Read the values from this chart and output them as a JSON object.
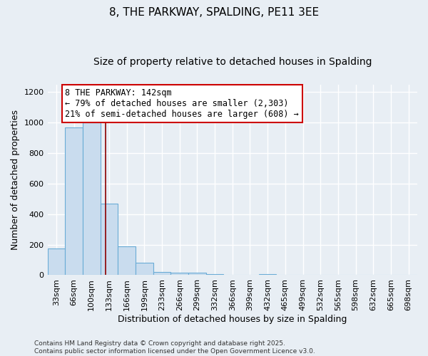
{
  "title": "8, THE PARKWAY, SPALDING, PE11 3EE",
  "subtitle": "Size of property relative to detached houses in Spalding",
  "xlabel": "Distribution of detached houses by size in Spalding",
  "ylabel": "Number of detached properties",
  "bar_color": "#c9dcee",
  "bar_edge_color": "#6aacd6",
  "categories": [
    "33sqm",
    "66sqm",
    "100sqm",
    "133sqm",
    "166sqm",
    "199sqm",
    "233sqm",
    "266sqm",
    "299sqm",
    "332sqm",
    "366sqm",
    "399sqm",
    "432sqm",
    "465sqm",
    "499sqm",
    "532sqm",
    "565sqm",
    "598sqm",
    "632sqm",
    "665sqm",
    "698sqm"
  ],
  "values": [
    175,
    970,
    1000,
    470,
    190,
    80,
    22,
    18,
    14,
    5,
    2,
    0,
    8,
    0,
    0,
    0,
    0,
    0,
    0,
    0,
    0
  ],
  "vline_x": 2.8,
  "vline_color": "#8b0000",
  "annotation_text": "8 THE PARKWAY: 142sqm\n← 79% of detached houses are smaller (2,303)\n21% of semi-detached houses are larger (608) →",
  "annotation_box_color": "white",
  "annotation_border_color": "#cc0000",
  "ylim": [
    0,
    1250
  ],
  "yticks": [
    0,
    200,
    400,
    600,
    800,
    1000,
    1200
  ],
  "footnote": "Contains HM Land Registry data © Crown copyright and database right 2025.\nContains public sector information licensed under the Open Government Licence v3.0.",
  "bg_color": "#e8eef4",
  "grid_color": "white",
  "title_fontsize": 11,
  "subtitle_fontsize": 10,
  "label_fontsize": 9,
  "tick_fontsize": 8,
  "annotation_fontsize": 8.5,
  "footnote_fontsize": 6.5
}
